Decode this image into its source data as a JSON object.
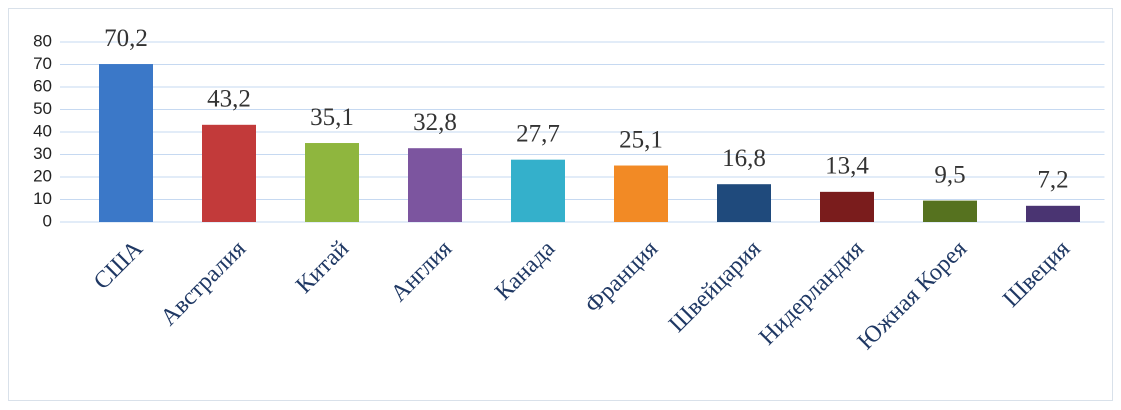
{
  "chart_data": {
    "type": "bar",
    "categories": [
      "США",
      "Австралия",
      "Китай",
      "Англия",
      "Канада",
      "Франция",
      "Швейцария",
      "Нидерландия",
      "Южная Корея",
      "Швеция"
    ],
    "values": [
      70.2,
      43.2,
      35.1,
      32.8,
      27.7,
      25.1,
      16.8,
      13.4,
      9.5,
      7.2
    ],
    "value_labels": [
      "70,2",
      "43,2",
      "35,1",
      "32,8",
      "27,7",
      "25,1",
      "16,8",
      "13,4",
      "9,5",
      "7,2"
    ],
    "colors": [
      "#3b78c8",
      "#c23a3a",
      "#8fb63e",
      "#7c559f",
      "#34b0cb",
      "#f28a25",
      "#1f4a7c",
      "#7a1c1c",
      "#56721f",
      "#4a3472"
    ],
    "ylim": [
      0,
      80
    ],
    "yticks": [
      0,
      10,
      20,
      30,
      40,
      50,
      60,
      70,
      80
    ],
    "grid": true
  }
}
